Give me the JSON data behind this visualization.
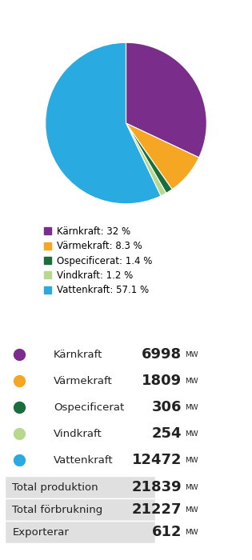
{
  "pie_labels": [
    "Kärnkraft",
    "Värmekraft",
    "Ospecificerat",
    "Vindkraft",
    "Vattenkraft"
  ],
  "pie_values": [
    32.0,
    8.3,
    1.4,
    1.2,
    57.1
  ],
  "pie_colors": [
    "#7b2d8b",
    "#f5a623",
    "#1a6e3c",
    "#b8d98d",
    "#29abe2"
  ],
  "pie_pcts": [
    "32 %",
    "8.3 %",
    "1.4 %",
    "1.2 %",
    "57.1 %"
  ],
  "mw_values": [
    "6998",
    "1809",
    "306",
    "254",
    "12472"
  ],
  "summary_labels": [
    "Total produktion",
    "Total förbrukning",
    "Exporterar"
  ],
  "summary_values": [
    "21839",
    "21227",
    "612"
  ],
  "row_bg": "#e0e0e0",
  "text_color": "#222222"
}
